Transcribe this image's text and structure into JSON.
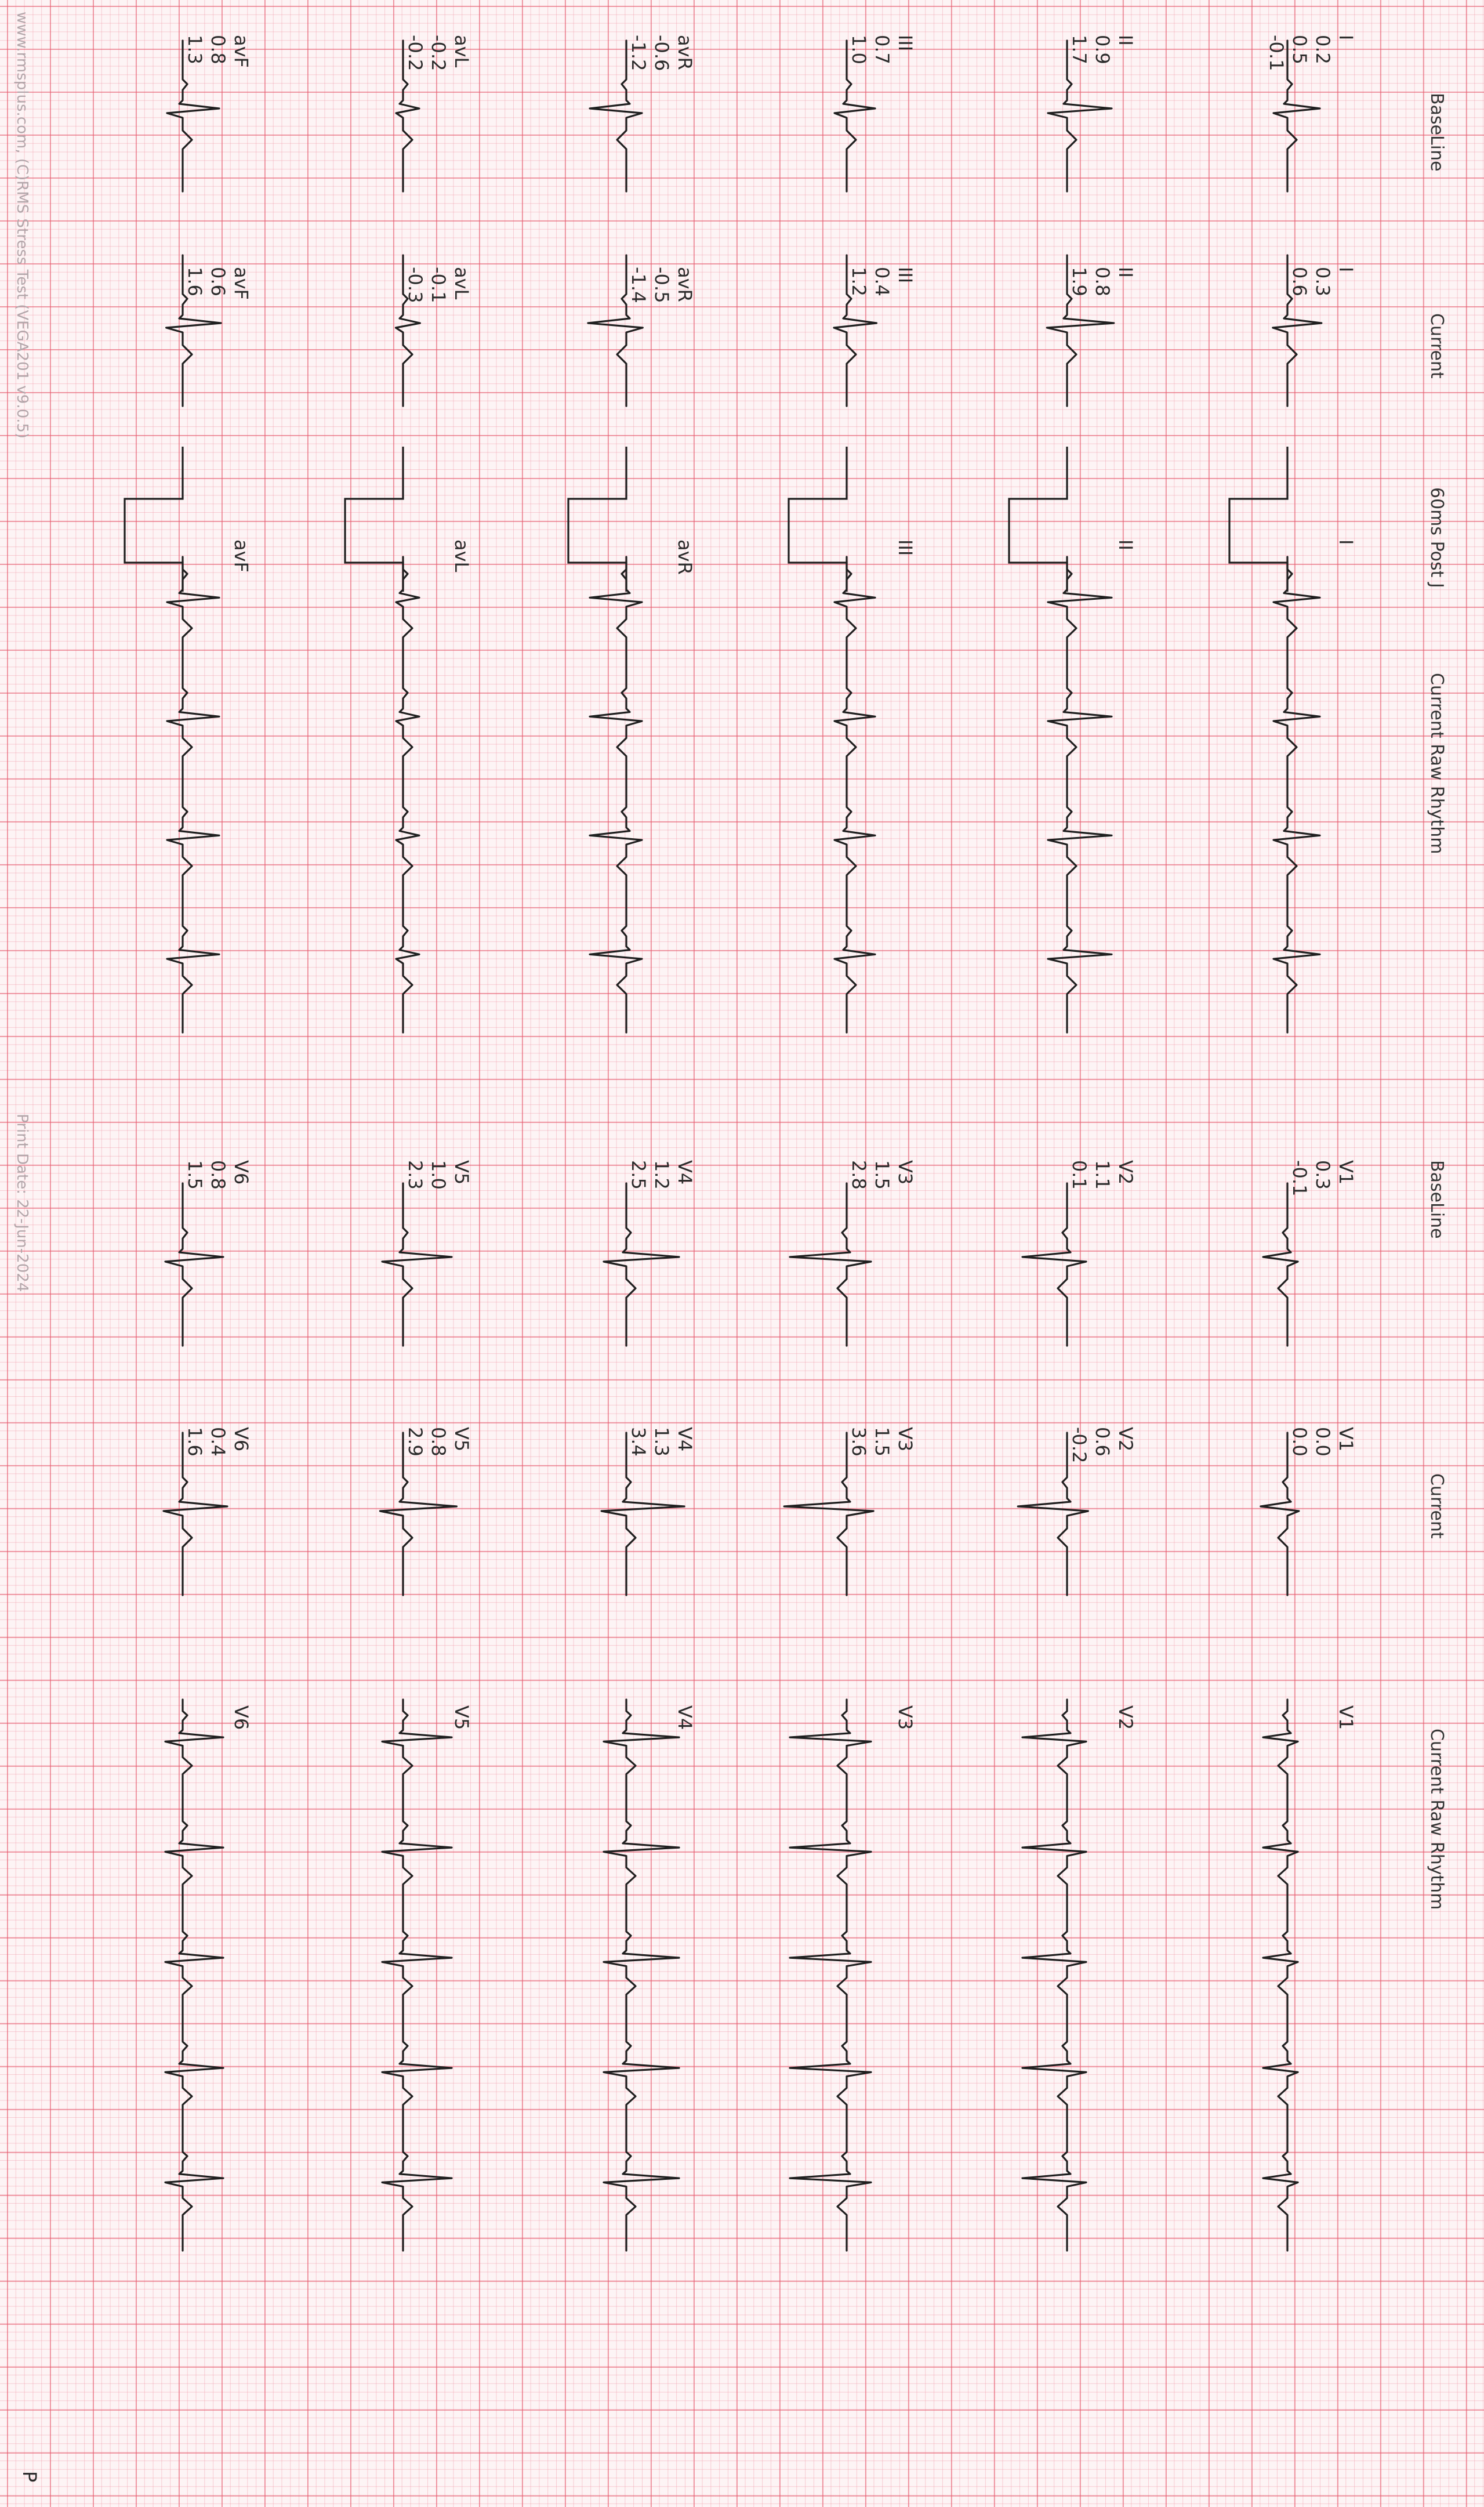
{
  "headers": {
    "baseline_limb": "BaseLine",
    "current_limb": "Current",
    "post_j": "60ms Post J",
    "rhythm_limb": "Current Raw Rhythm",
    "baseline_chest": "BaseLine",
    "current_chest": "Current",
    "rhythm_chest": "Current Raw Rhythm"
  },
  "limb_leads": [
    {
      "lead": "I",
      "baseline": [
        "0.2",
        "0.5"
      ],
      "current": [
        "0.3",
        "0.6"
      ]
    },
    {
      "lead": "II",
      "baseline": [
        "0.9",
        "1.7"
      ],
      "current": [
        "0.8",
        "1.9"
      ]
    },
    {
      "lead": "III",
      "baseline": [
        "0.7",
        "1.0"
      ],
      "current": [
        "0.4",
        "1.2"
      ]
    },
    {
      "lead": "avR",
      "baseline": [
        "-0.6",
        "-1.2"
      ],
      "current": [
        "-0.5",
        "-1.4"
      ]
    },
    {
      "lead": "avL",
      "baseline": [
        "-0.2",
        "-0.2"
      ],
      "current": [
        "-0.1",
        "-0.3"
      ]
    },
    {
      "lead": "avF",
      "baseline": [
        "0.8",
        "1.3"
      ],
      "current": [
        "0.6",
        "1.6"
      ]
    }
  ],
  "chest_leads": [
    {
      "lead": "V1",
      "baseline": [
        "0.3",
        "-0.1"
      ],
      "current": [
        "0.0",
        "0.0"
      ]
    },
    {
      "lead": "V2",
      "baseline": [
        "1.1",
        "0.1"
      ],
      "current": [
        "0.6",
        "-0.2"
      ]
    },
    {
      "lead": "V3",
      "baseline": [
        "1.5",
        "2.8"
      ],
      "current": [
        "1.5",
        "3.6"
      ]
    },
    {
      "lead": "V4",
      "baseline": [
        "1.2",
        "2.5"
      ],
      "current": [
        "1.3",
        "3.4"
      ]
    },
    {
      "lead": "V5",
      "baseline": [
        "1.0",
        "2.3"
      ],
      "current": [
        "0.8",
        "2.9"
      ]
    },
    {
      "lead": "V6",
      "baseline": [
        "0.8",
        "1.5"
      ],
      "current": [
        "0.4",
        "1.6"
      ]
    }
  ],
  "lead_I_extra": "-0.1",
  "footer": {
    "source": "www.rmsplus.com, (C)RMS Stress Test (VEGA201 v9.0.5)",
    "print_date": "Print Date: 22-Jun-2024"
  },
  "page_corner": "P",
  "colors": {
    "grid_major": "#e65a6e",
    "grid_minor": "#f096a5",
    "trace": "#1f1f1f",
    "paper": "#fdf4f5"
  }
}
